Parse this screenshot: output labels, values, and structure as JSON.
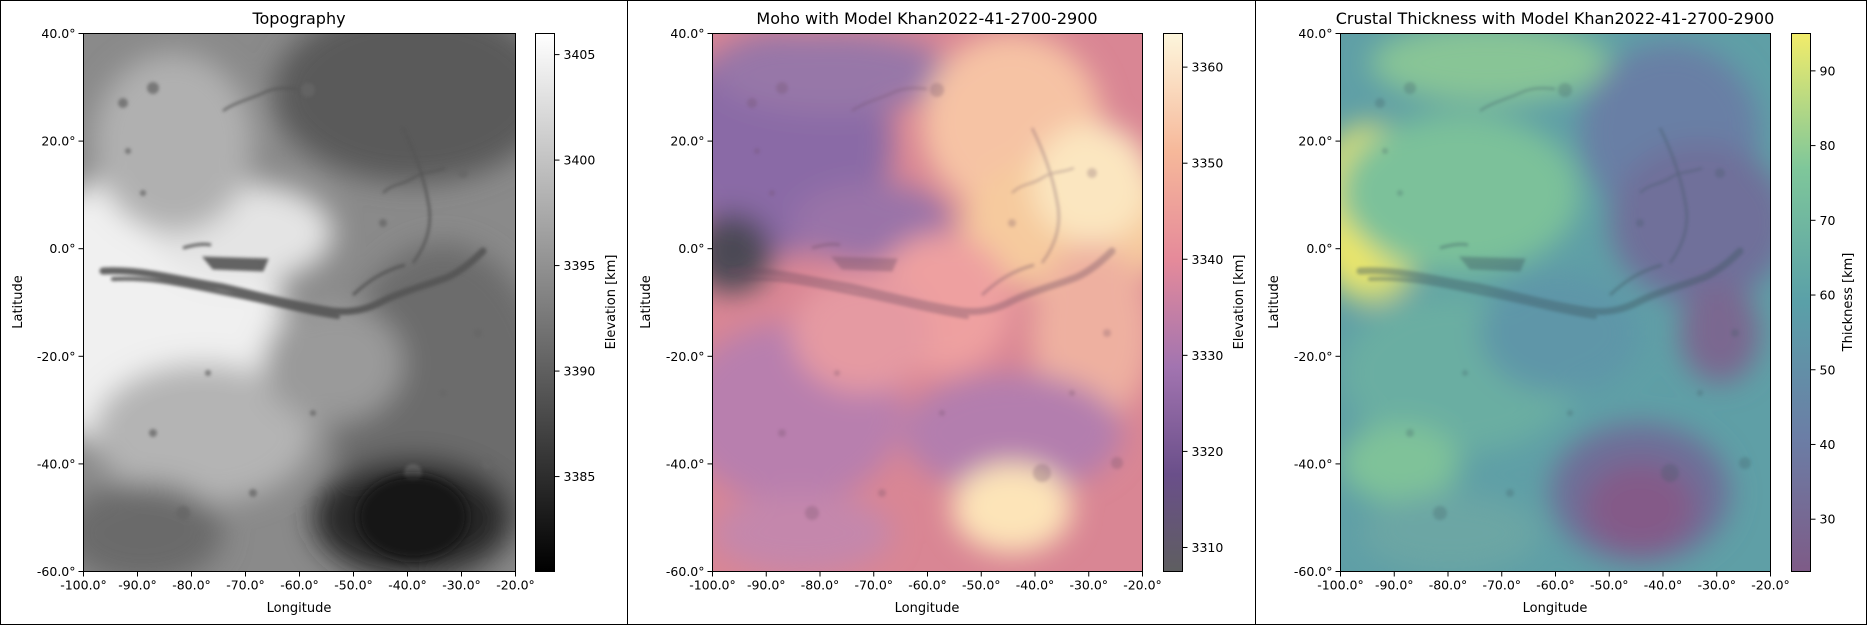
{
  "chart_data": [
    {
      "type": "heatmap",
      "title": "Topography",
      "xlabel": "Longitude",
      "ylabel": "Latitude",
      "xlim": [
        -100,
        -20
      ],
      "ylim": [
        -60,
        40
      ],
      "x_ticks": [
        "-100.0°",
        "-90.0°",
        "-80.0°",
        "-70.0°",
        "-60.0°",
        "-50.0°",
        "-40.0°",
        "-30.0°",
        "-20.0°"
      ],
      "y_ticks": [
        "40.0°",
        "20.0°",
        "0.0°",
        "-20.0°",
        "-40.0°",
        "-60.0°"
      ],
      "colorbar": {
        "label": "Elevation [km]",
        "colormap": "gray",
        "range": [
          3380.5,
          3406
        ],
        "ticks": [
          3385,
          3390,
          3395,
          3400,
          3405
        ],
        "tick_labels": [
          "3385",
          "3390",
          "3395",
          "3400",
          "3405"
        ]
      }
    },
    {
      "type": "heatmap",
      "title": "Moho with Model Khan2022-41-2700-2900",
      "xlabel": "Longitude",
      "ylabel": "Latitude",
      "xlim": [
        -100,
        -20
      ],
      "ylim": [
        -60,
        40
      ],
      "x_ticks": [
        "-100.0°",
        "-90.0°",
        "-80.0°",
        "-70.0°",
        "-60.0°",
        "-50.0°",
        "-40.0°",
        "-30.0°",
        "-20.0°"
      ],
      "y_ticks": [
        "40.0°",
        "20.0°",
        "0.0°",
        "-20.0°",
        "-40.0°",
        "-60.0°"
      ],
      "colorbar": {
        "label": "Elevation [km]",
        "colormap": "magma",
        "range": [
          3307.5,
          3363.5
        ],
        "ticks": [
          3310,
          3320,
          3330,
          3340,
          3350,
          3360
        ],
        "tick_labels": [
          "3310",
          "3320",
          "3330",
          "3340",
          "3350",
          "3360"
        ]
      }
    },
    {
      "type": "heatmap",
      "title": "Crustal Thickness with Model Khan2022-41-2700-2900",
      "xlabel": "Longitude",
      "ylabel": "Latitude",
      "xlim": [
        -100,
        -20
      ],
      "ylim": [
        -60,
        40
      ],
      "x_ticks": [
        "-100.0°",
        "-90.0°",
        "-80.0°",
        "-70.0°",
        "-60.0°",
        "-50.0°",
        "-40.0°",
        "-30.0°",
        "-20.0°"
      ],
      "y_ticks": [
        "40.0°",
        "20.0°",
        "0.0°",
        "-20.0°",
        "-40.0°",
        "-60.0°"
      ],
      "colorbar": {
        "label": "Thickness [km]",
        "colormap": "viridis",
        "range": [
          23,
          95
        ],
        "ticks": [
          30,
          40,
          50,
          60,
          70,
          80,
          90
        ],
        "tick_labels": [
          "30",
          "40",
          "50",
          "60",
          "70",
          "80",
          "90"
        ]
      }
    }
  ],
  "colors": {
    "background": "#ffffff",
    "axis": "#000000"
  }
}
